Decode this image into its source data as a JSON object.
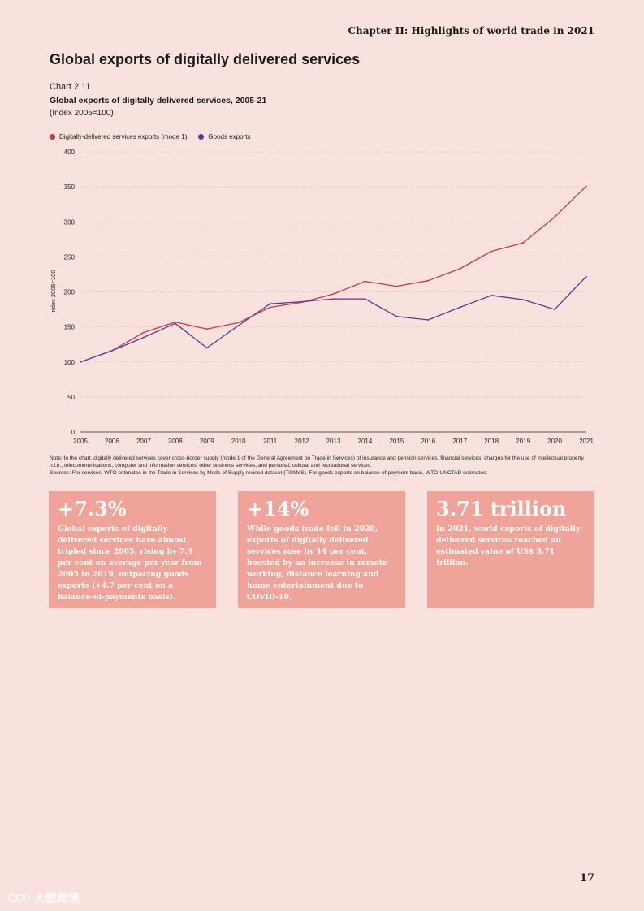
{
  "header": {
    "running_title": "Chapter II: Highlights of world trade in 2021"
  },
  "page_title": "Global exports of digitally delivered services",
  "chart_label": {
    "number": "Chart 2.11",
    "title": "Global exports of digitally delivered services, 2005-21",
    "subtitle": "(Index 2005=100)"
  },
  "colors": {
    "services": "#c53a4a",
    "goods": "#5b3a96",
    "background": "#f9e2de",
    "box": "#f0a399"
  },
  "chart_data": {
    "type": "line",
    "title": "Global exports of digitally delivered services, 2005-21",
    "xlabel": "",
    "ylabel": "Index 2005=100",
    "x": [
      "2005",
      "2006",
      "2007",
      "2008",
      "2009",
      "2010",
      "2011",
      "2012",
      "2013",
      "2014",
      "2015",
      "2016",
      "2017",
      "2018",
      "2019",
      "2020",
      "2021"
    ],
    "ylim": [
      0,
      400
    ],
    "yticks": [
      0,
      50,
      100,
      150,
      200,
      250,
      300,
      350,
      400
    ],
    "grid": true,
    "legend_position": "top-left",
    "series": [
      {
        "name": "Digitally-delivered services exports (mode 1)",
        "color": "#c53a4a",
        "values": [
          100,
          116,
          142,
          157,
          147,
          156,
          178,
          185,
          197,
          215,
          208,
          216,
          233,
          258,
          270,
          307,
          351
        ]
      },
      {
        "name": "Goods exports",
        "color": "#5b3a96",
        "values": [
          100,
          116,
          135,
          155,
          120,
          152,
          183,
          186,
          190,
          190,
          165,
          160,
          178,
          195,
          189,
          175,
          222
        ]
      }
    ]
  },
  "notes": {
    "note": "Note: In the chart, digitally delivered services cover cross-border supply (mode 1 of the General Agreement on Trade in Services) of insurance and pension services, financial services, charges for the use of intellectual property n.i.e., telecommunications, computer and information services, other business services, and personal, cultural and recreational services.",
    "sources": "Sources: For services, WTO estimates in the Trade in Services by Mode of Supply revised dataset (TiSMoS). For goods exports on balance-of-payment basis, WTO-UNCTAD estimates."
  },
  "highlights": [
    {
      "big": "+7.3%",
      "text": "Global exports of digitally delivered services have almost tripled since 2005, rising by 7.3 per cent on average per year from 2005 to 2019, outpacing goods exports (+4.7 per cent on a balance-of-payments basis)."
    },
    {
      "big": "+14%",
      "text": "While goods trade fell in 2020, exports of digitally delivered services rose by 14 per cent, boosted by an increase in remote working, distance learning and home entertainment due to COVID-19."
    },
    {
      "big": "3.71 trillion",
      "text": "In 2021, world exports of digitally delivered services reached an estimated value of US$ 3.71 trillion."
    }
  ],
  "page_number": "17",
  "watermark": {
    "icon": "logo-icon",
    "text": "大数跨境"
  }
}
